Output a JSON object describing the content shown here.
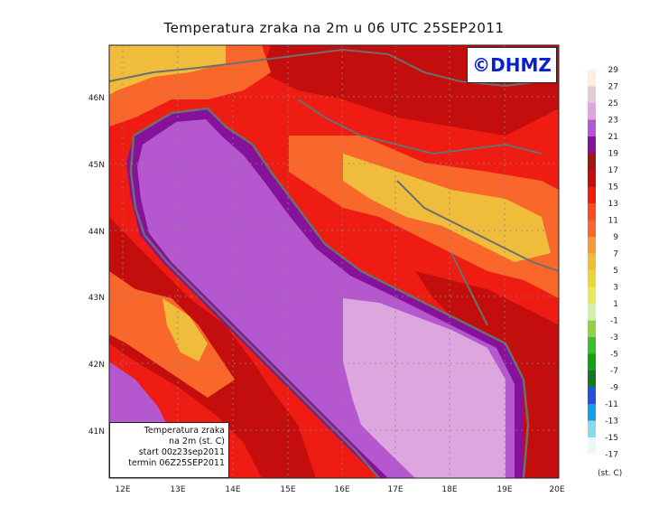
{
  "title": "Temperatura zraka na 2m u 06 UTC 25SEP2011",
  "brand": "©DHMZ",
  "info_box": [
    "Temperatura zraka",
    "na 2m (st. C)",
    "start 00z23sep2011",
    "termin 06Z25SEP2011"
  ],
  "axes": {
    "lat_ticks": [
      "46N",
      "45N",
      "44N",
      "43N",
      "42N",
      "41N"
    ],
    "lon_ticks": [
      "12E",
      "13E",
      "14E",
      "15E",
      "16E",
      "17E",
      "18E",
      "19E",
      "20E"
    ]
  },
  "legend": {
    "unit": "(st. C)",
    "levels": [
      {
        "label": "29",
        "color": "#fdefe0"
      },
      {
        "label": "27",
        "color": "#e2c9da"
      },
      {
        "label": "25",
        "color": "#dda6df"
      },
      {
        "label": "23",
        "color": "#b557cf"
      },
      {
        "label": "21",
        "color": "#86119a"
      },
      {
        "label": "19",
        "color": "#a01616"
      },
      {
        "label": "17",
        "color": "#c40e0e"
      },
      {
        "label": "15",
        "color": "#ee1c12"
      },
      {
        "label": "13",
        "color": "#fb4a24"
      },
      {
        "label": "11",
        "color": "#f9682a"
      },
      {
        "label": "9",
        "color": "#f5993c"
      },
      {
        "label": "7",
        "color": "#efbc3b"
      },
      {
        "label": "5",
        "color": "#ebd63a"
      },
      {
        "label": "3",
        "color": "#e5ea5e"
      },
      {
        "label": "1",
        "color": "#d8ecb0"
      },
      {
        "label": "-1",
        "color": "#8ed442"
      },
      {
        "label": "-3",
        "color": "#3dbd2c"
      },
      {
        "label": "-5",
        "color": "#15a01a"
      },
      {
        "label": "-7",
        "color": "#107a22"
      },
      {
        "label": "-9",
        "color": "#2a4fe0"
      },
      {
        "label": "-11",
        "color": "#139ee6"
      },
      {
        "label": "-13",
        "color": "#8ed7ea"
      },
      {
        "label": "-15",
        "color": "#c9eef4"
      },
      {
        "label": "-17",
        "color": "#eaf9f8"
      }
    ]
  },
  "colors": {
    "sea_warm": "#dda6df",
    "sea": "#b557cf",
    "coast_band": "#86119a",
    "land_hot": "#c40e0e",
    "land_warm": "#ee1c12",
    "land_mild": "#f9682a",
    "land_cool": "#efbc3b",
    "border": "#6e6e6e"
  }
}
